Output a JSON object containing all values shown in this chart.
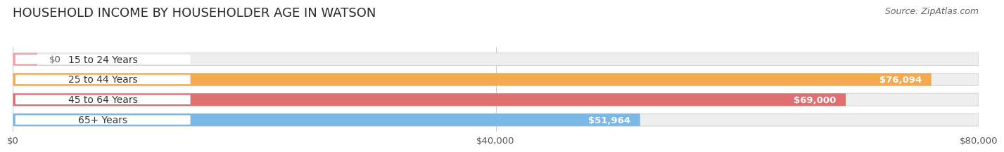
{
  "title": "HOUSEHOLD INCOME BY HOUSEHOLDER AGE IN WATSON",
  "source": "Source: ZipAtlas.com",
  "categories": [
    "15 to 24 Years",
    "25 to 44 Years",
    "45 to 64 Years",
    "65+ Years"
  ],
  "values": [
    0,
    76094,
    69000,
    51964
  ],
  "bar_colors": [
    "#f4a0a8",
    "#f5a94e",
    "#e07070",
    "#7ab8e8"
  ],
  "bar_bg_color": "#eeeeee",
  "value_labels": [
    "$0",
    "$76,094",
    "$69,000",
    "$51,964"
  ],
  "xlim": [
    0,
    80000
  ],
  "xticks": [
    0,
    40000,
    80000
  ],
  "xtick_labels": [
    "$0",
    "$40,000",
    "$80,000"
  ],
  "background_color": "#ffffff",
  "bar_height": 0.62,
  "title_fontsize": 13,
  "source_fontsize": 9,
  "label_fontsize": 10,
  "value_fontsize": 9.5
}
